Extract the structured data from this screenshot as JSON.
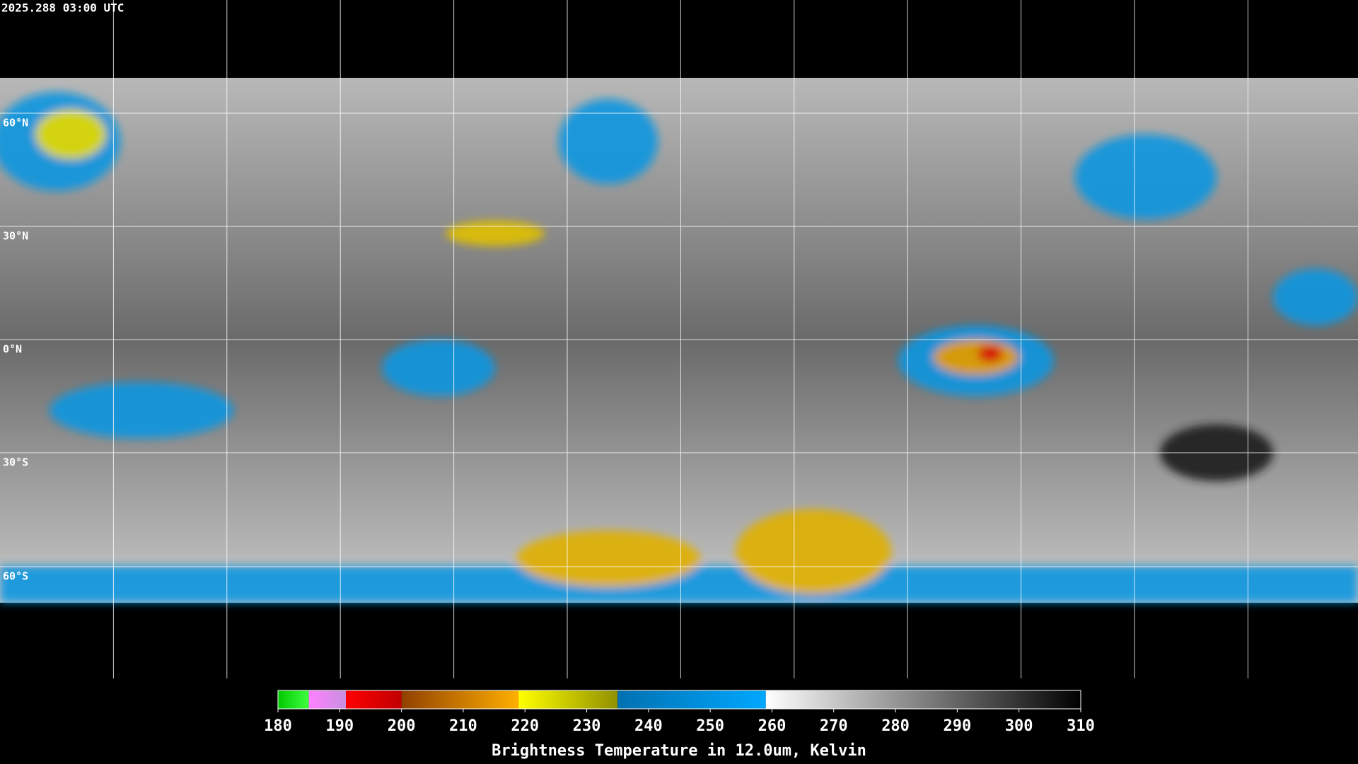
{
  "header": {
    "timestamp": "2025.288 03:00 UTC"
  },
  "map": {
    "lat_labels": [
      "60°N",
      "30°N",
      "0°N",
      "30°S",
      "60°S"
    ]
  },
  "colorbar": {
    "title": "Brightness Temperature in 12.0um, Kelvin",
    "lim": [
      180,
      310
    ],
    "ticks": [
      180,
      190,
      200,
      210,
      220,
      230,
      240,
      250,
      260,
      270,
      280,
      290,
      300,
      310
    ],
    "segments": [
      {
        "from": 180,
        "to": 185,
        "colors": [
          "#00c800",
          "#40ff40"
        ]
      },
      {
        "from": 185,
        "to": 191,
        "colors": [
          "#ff80ff",
          "#c890e0"
        ]
      },
      {
        "from": 191,
        "to": 200,
        "colors": [
          "#ff0000",
          "#c00000"
        ]
      },
      {
        "from": 200,
        "to": 219,
        "colors": [
          "#904000",
          "#ffb000"
        ]
      },
      {
        "from": 219,
        "to": 235,
        "colors": [
          "#ffff00",
          "#909000"
        ]
      },
      {
        "from": 235,
        "to": 259,
        "colors": [
          "#0070b0",
          "#00a8ff"
        ]
      },
      {
        "from": 259,
        "to": 310,
        "colors": [
          "#ffffff",
          "#000000"
        ]
      }
    ]
  }
}
